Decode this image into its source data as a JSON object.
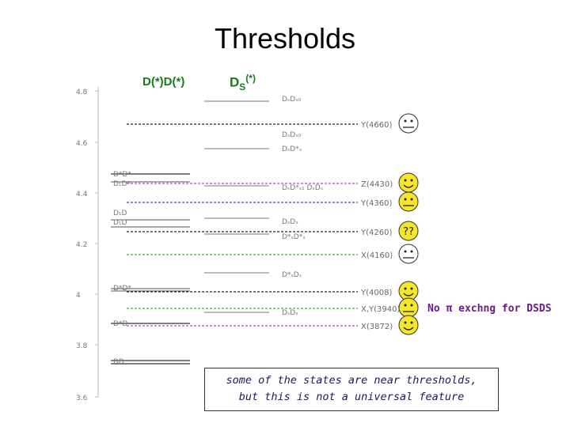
{
  "title": "Thresholds",
  "columns": {
    "left_header": "D(*)D(*)",
    "left_header_base": "D",
    "left_header_sup": "(*)",
    "right_header_base": "D",
    "right_header_sub": "S",
    "right_header_sup": "(*)"
  },
  "axis": {
    "ticks": [
      "4.8",
      "4.6",
      "4.4",
      "4.2",
      "4",
      "3.8",
      "3.6"
    ]
  },
  "dd_labels": [
    "D*D*",
    "D₁D*",
    "D₁D",
    "D₁D",
    "D*D*",
    "D*D",
    "DD"
  ],
  "dsds_labels": [
    "DₛDₛ₀",
    "DₛDₛ₀",
    "DₛD*ₛ",
    "DₛD*ₛ₁ DₛDₛ",
    "DₛDₛ",
    "D*ₛD*ₛ",
    "D*ₛDₛ",
    "DₛDₛ"
  ],
  "states": [
    {
      "label": "Y(4660)",
      "color": "#222222",
      "face": "neutral",
      "face_color": "#ffffff"
    },
    {
      "label": "Z(4430)",
      "color": "#cc33cc",
      "face": "happy",
      "face_color": "#f5e62a"
    },
    {
      "label": "Y(4360)",
      "color": "#4444cc",
      "face": "neutral",
      "face_color": "#f5e62a"
    },
    {
      "label": "Y(4260)",
      "color": "#222222",
      "face": "question",
      "face_color": "#f5e62a",
      "face_text": "??"
    },
    {
      "label": "X(4160)",
      "color": "#33bb33",
      "face": "neutral",
      "face_color": "#ffffff"
    },
    {
      "label": "Y(4008)",
      "color": "#222222",
      "face": "happy",
      "face_color": "#f5e62a"
    },
    {
      "label": "X,Y(3940)",
      "color": "#33bb33",
      "face": "neutral",
      "face_color": "#f5e62a"
    },
    {
      "label": "X(3872)",
      "color": "#cc33cc",
      "face": "happy",
      "face_color": "#f5e62a"
    }
  ],
  "notes": {
    "pi_exchange": "No π exchng for DSDS",
    "summary_line1": "some of the states are near thresholds,",
    "summary_line2": "but this is not a universal feature"
  }
}
